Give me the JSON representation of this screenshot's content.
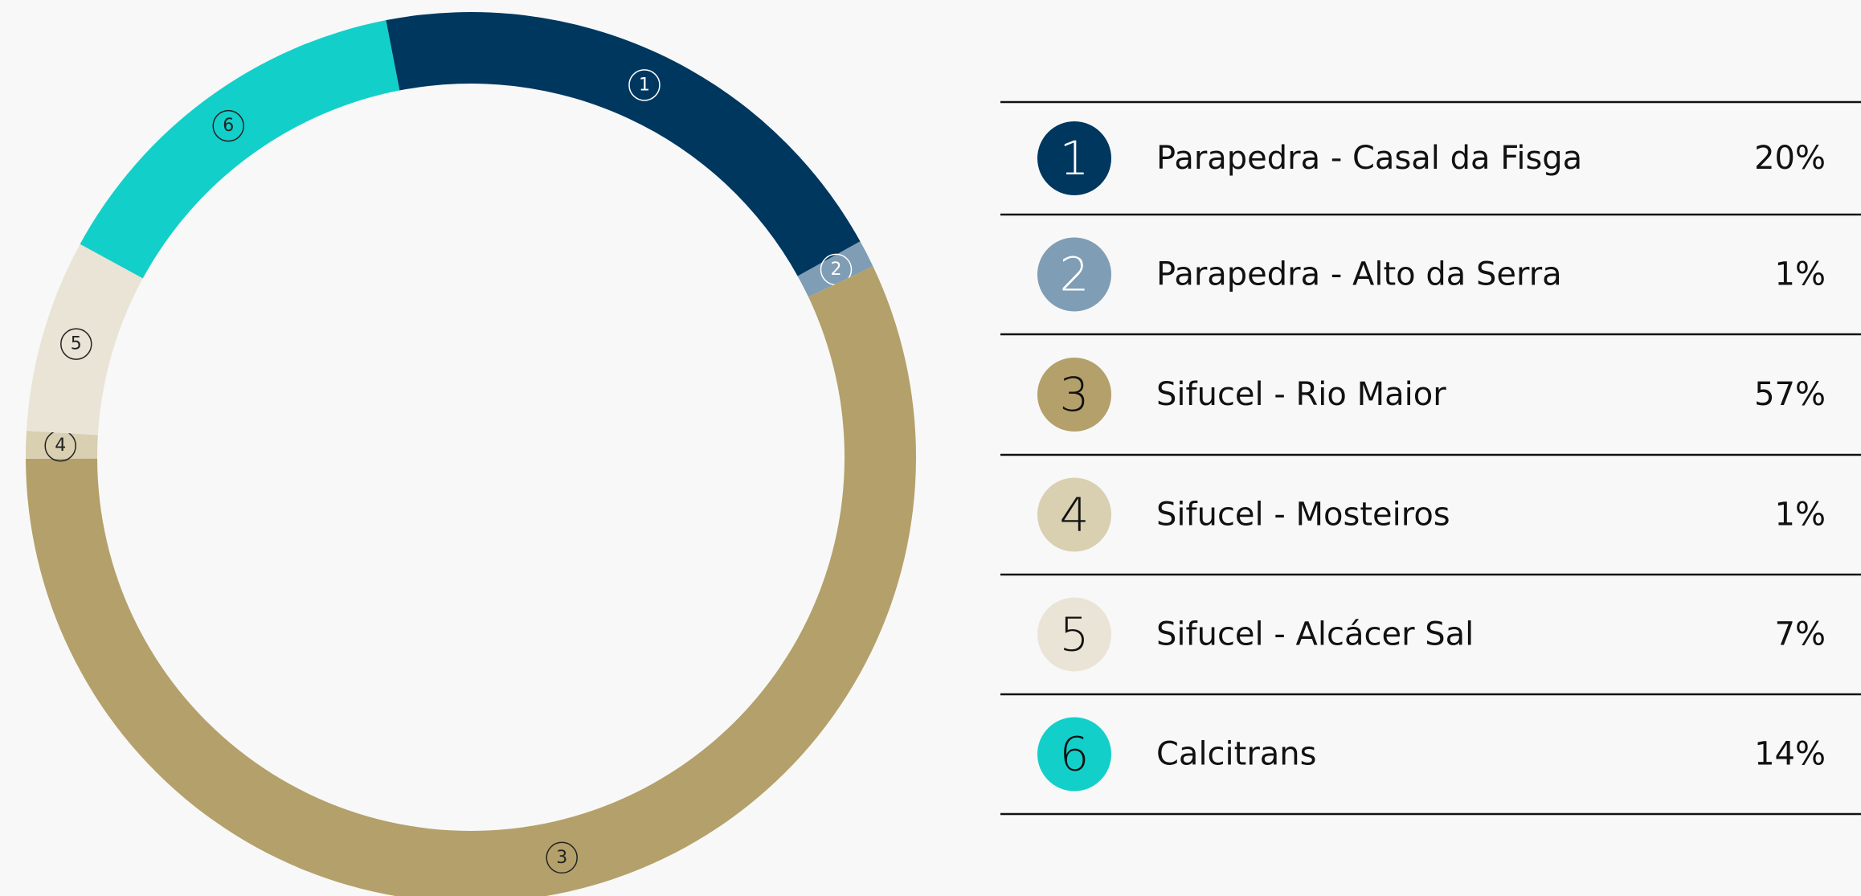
{
  "chart_data": {
    "type": "donut",
    "keys": [
      "1",
      "2",
      "3",
      "4",
      "5",
      "6"
    ],
    "categories": [
      "Parapedra - Casal da Fisga",
      "Parapedra - Alto da Serra",
      "Sifucel - Rio Maior",
      "Sifucel - Mosteiros",
      "Sifucel - Alcácer Sal",
      "Calcitrans"
    ],
    "values": [
      20,
      1,
      57,
      1,
      7,
      14
    ],
    "value_labels": [
      "20%",
      "1%",
      "57%",
      "1%",
      "7%",
      "14%"
    ],
    "colors": [
      "#00375f",
      "#7f9db5",
      "#b4a06a",
      "#d9cfb1",
      "#e9e4d5",
      "#13cfc9"
    ]
  }
}
